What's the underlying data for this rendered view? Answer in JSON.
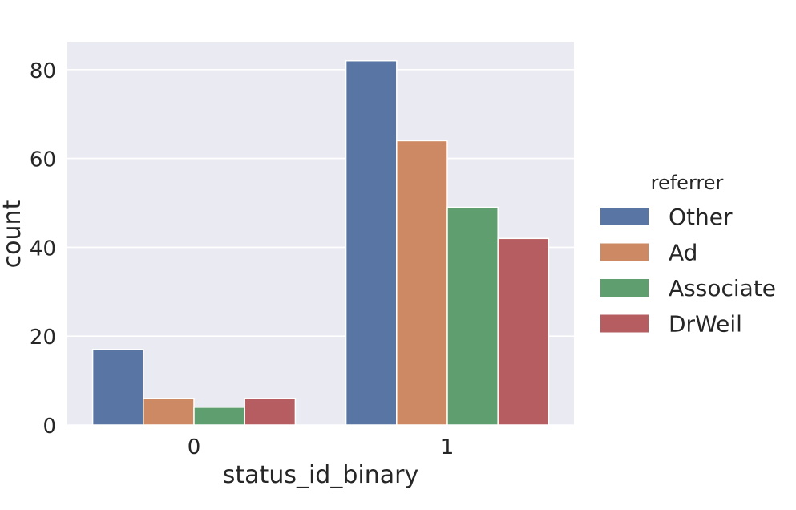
{
  "chart_data": {
    "type": "bar",
    "xlabel": "status_id_binary",
    "ylabel": "count",
    "categories": [
      "0",
      "1"
    ],
    "ylim": [
      0,
      86.1
    ],
    "yticks": [
      0,
      20,
      40,
      60,
      80
    ],
    "grid": true,
    "legend": {
      "title": "referrer",
      "placement": "right"
    },
    "series": [
      {
        "name": "Other",
        "color": "#5875a4",
        "values": [
          17,
          82
        ]
      },
      {
        "name": "Ad",
        "color": "#cc8963",
        "values": [
          6,
          64
        ]
      },
      {
        "name": "Associate",
        "color": "#5f9e6e",
        "values": [
          4,
          49
        ]
      },
      {
        "name": "DrWeil",
        "color": "#b55d60",
        "values": [
          6,
          42
        ]
      }
    ]
  }
}
